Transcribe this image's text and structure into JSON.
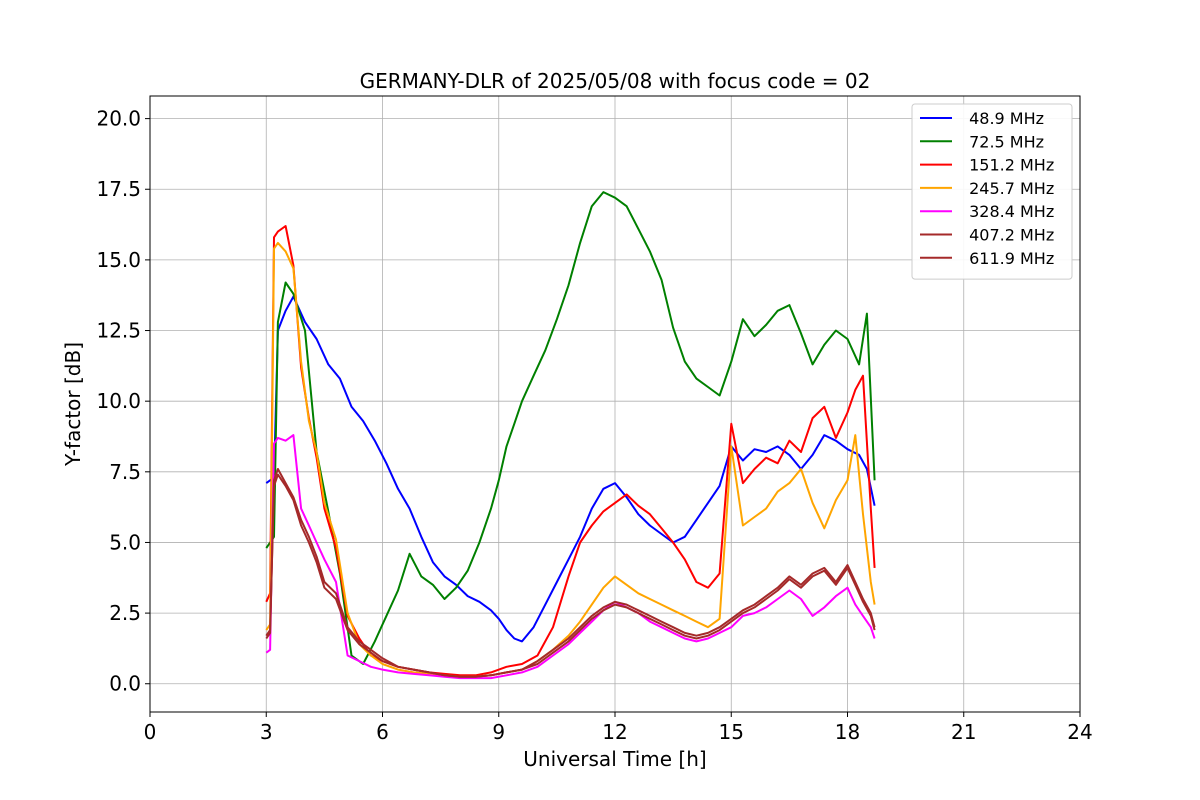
{
  "chart_data": {
    "type": "line",
    "title": "GERMANY-DLR of 2025/05/08 with focus code = 02",
    "xlabel": "Universal Time [h]",
    "ylabel": "Y-factor [dB]",
    "xlim": [
      0,
      24
    ],
    "ylim": [
      -1.0,
      20.8
    ],
    "xticks": [
      0,
      3,
      6,
      9,
      12,
      15,
      18,
      21,
      24
    ],
    "xtick_labels": [
      "0",
      "3",
      "6",
      "9",
      "12",
      "15",
      "18",
      "21",
      "24"
    ],
    "yticks": [
      0,
      2.5,
      5,
      7.5,
      10,
      12.5,
      15,
      17.5,
      20
    ],
    "ytick_labels": [
      "0.0",
      "2.5",
      "5.0",
      "7.5",
      "10.0",
      "12.5",
      "15.0",
      "17.5",
      "20.0"
    ],
    "grid": true,
    "legend_position": "top-right",
    "series": [
      {
        "name": " 48.9 MHz",
        "color": "#0000ff",
        "x": [
          3.0,
          3.2,
          3.3,
          3.5,
          3.7,
          4.0,
          4.3,
          4.6,
          4.9,
          5.2,
          5.5,
          5.8,
          6.1,
          6.4,
          6.7,
          7.0,
          7.3,
          7.6,
          7.9,
          8.2,
          8.5,
          8.8,
          9.0,
          9.2,
          9.4,
          9.6,
          9.9,
          10.2,
          10.5,
          10.8,
          11.1,
          11.4,
          11.7,
          12.0,
          12.3,
          12.6,
          12.9,
          13.2,
          13.5,
          13.8,
          14.1,
          14.4,
          14.7,
          15.0,
          15.3,
          15.6,
          15.9,
          16.2,
          16.5,
          16.8,
          17.1,
          17.4,
          17.7,
          18.0,
          18.3,
          18.5,
          18.7
        ],
        "y": [
          7.1,
          7.3,
          12.5,
          13.2,
          13.7,
          12.8,
          12.2,
          11.3,
          10.8,
          9.8,
          9.3,
          8.6,
          7.8,
          6.9,
          6.2,
          5.2,
          4.3,
          3.8,
          3.5,
          3.1,
          2.9,
          2.6,
          2.3,
          1.9,
          1.6,
          1.5,
          2.0,
          2.8,
          3.6,
          4.4,
          5.2,
          6.2,
          6.9,
          7.1,
          6.6,
          6.0,
          5.6,
          5.3,
          5.0,
          5.2,
          5.8,
          6.4,
          7.0,
          8.4,
          7.9,
          8.3,
          8.2,
          8.4,
          8.1,
          7.6,
          8.1,
          8.8,
          8.6,
          8.3,
          8.1,
          7.6,
          6.3
        ]
      },
      {
        "name": " 72.5 MHz",
        "color": "#008000",
        "x": [
          3.0,
          3.2,
          3.3,
          3.5,
          3.7,
          4.0,
          4.3,
          4.6,
          4.9,
          5.2,
          5.5,
          5.8,
          6.1,
          6.4,
          6.7,
          7.0,
          7.3,
          7.6,
          7.9,
          8.2,
          8.5,
          8.8,
          9.0,
          9.2,
          9.4,
          9.6,
          9.9,
          10.2,
          10.5,
          10.8,
          11.1,
          11.4,
          11.7,
          12.0,
          12.3,
          12.6,
          12.9,
          13.2,
          13.5,
          13.8,
          14.1,
          14.4,
          14.7,
          15.0,
          15.3,
          15.6,
          15.9,
          16.2,
          16.5,
          16.8,
          17.1,
          17.4,
          17.7,
          18.0,
          18.3,
          18.5,
          18.7
        ],
        "y": [
          4.8,
          5.2,
          12.8,
          14.2,
          13.8,
          12.5,
          8.2,
          6.1,
          3.9,
          1.0,
          0.7,
          1.5,
          2.4,
          3.3,
          4.6,
          3.8,
          3.5,
          3.0,
          3.4,
          4.0,
          5.0,
          6.2,
          7.2,
          8.4,
          9.2,
          10.0,
          10.9,
          11.8,
          12.9,
          14.1,
          15.6,
          16.9,
          17.4,
          17.2,
          16.9,
          16.1,
          15.3,
          14.3,
          12.6,
          11.4,
          10.8,
          10.5,
          10.2,
          11.4,
          12.9,
          12.3,
          12.7,
          13.2,
          13.4,
          12.4,
          11.3,
          12.0,
          12.5,
          12.2,
          11.3,
          13.1,
          7.2
        ]
      },
      {
        "name": " 151.2 MHz",
        "color": "#ff0000",
        "x": [
          3.0,
          3.1,
          3.2,
          3.3,
          3.5,
          3.7,
          3.9,
          4.1,
          4.3,
          4.5,
          4.8,
          5.1,
          5.4,
          5.7,
          6.0,
          6.4,
          6.8,
          7.2,
          7.6,
          8.0,
          8.4,
          8.8,
          9.2,
          9.6,
          10.0,
          10.4,
          10.8,
          11.1,
          11.4,
          11.7,
          12.0,
          12.3,
          12.6,
          12.9,
          13.2,
          13.5,
          13.8,
          14.1,
          14.4,
          14.7,
          15.0,
          15.3,
          15.6,
          15.9,
          16.2,
          16.5,
          16.8,
          17.1,
          17.4,
          17.7,
          18.0,
          18.2,
          18.4,
          18.6,
          18.7
        ],
        "y": [
          2.9,
          3.2,
          15.8,
          16.0,
          16.2,
          14.8,
          11.2,
          9.4,
          8.0,
          6.2,
          4.8,
          2.4,
          1.6,
          1.0,
          0.8,
          0.6,
          0.5,
          0.4,
          0.35,
          0.3,
          0.3,
          0.4,
          0.6,
          0.7,
          1.0,
          2.0,
          3.8,
          5.0,
          5.6,
          6.1,
          6.4,
          6.7,
          6.3,
          6.0,
          5.5,
          5.0,
          4.4,
          3.6,
          3.4,
          3.9,
          9.2,
          7.1,
          7.6,
          8.0,
          7.8,
          8.6,
          8.2,
          9.4,
          9.8,
          8.7,
          9.6,
          10.4,
          10.9,
          6.2,
          4.1
        ]
      },
      {
        "name": " 245.7 MHz",
        "color": "#ffa500",
        "x": [
          3.0,
          3.1,
          3.2,
          3.3,
          3.5,
          3.7,
          3.9,
          4.1,
          4.3,
          4.5,
          4.8,
          5.1,
          5.4,
          5.7,
          6.0,
          6.4,
          6.8,
          7.2,
          7.6,
          8.0,
          8.4,
          8.8,
          9.2,
          9.6,
          10.0,
          10.4,
          10.8,
          11.1,
          11.4,
          11.7,
          12.0,
          12.3,
          12.6,
          12.9,
          13.2,
          13.5,
          13.8,
          14.1,
          14.4,
          14.7,
          15.0,
          15.3,
          15.6,
          15.9,
          16.2,
          16.5,
          16.8,
          17.1,
          17.4,
          17.7,
          18.0,
          18.2,
          18.4,
          18.6,
          18.7
        ],
        "y": [
          1.9,
          2.1,
          15.4,
          15.6,
          15.3,
          14.7,
          11.4,
          9.3,
          8.2,
          6.4,
          5.1,
          2.5,
          1.4,
          1.0,
          0.7,
          0.5,
          0.4,
          0.35,
          0.3,
          0.25,
          0.25,
          0.3,
          0.4,
          0.5,
          0.8,
          1.2,
          1.7,
          2.2,
          2.8,
          3.4,
          3.8,
          3.5,
          3.2,
          3.0,
          2.8,
          2.6,
          2.4,
          2.2,
          2.0,
          2.3,
          8.4,
          5.6,
          5.9,
          6.2,
          6.8,
          7.1,
          7.6,
          6.4,
          5.5,
          6.5,
          7.2,
          8.8,
          6.0,
          3.6,
          2.8
        ]
      },
      {
        "name": " 328.4 MHz",
        "color": "#ff00ff",
        "x": [
          3.0,
          3.1,
          3.2,
          3.3,
          3.5,
          3.7,
          3.9,
          4.1,
          4.3,
          4.5,
          4.8,
          5.1,
          5.4,
          5.7,
          6.0,
          6.4,
          6.8,
          7.2,
          7.6,
          8.0,
          8.4,
          8.8,
          9.2,
          9.6,
          10.0,
          10.4,
          10.8,
          11.1,
          11.4,
          11.7,
          12.0,
          12.3,
          12.6,
          12.9,
          13.2,
          13.5,
          13.8,
          14.1,
          14.4,
          14.7,
          15.0,
          15.3,
          15.6,
          15.9,
          16.2,
          16.5,
          16.8,
          17.1,
          17.4,
          17.7,
          18.0,
          18.2,
          18.4,
          18.6,
          18.7
        ],
        "y": [
          1.1,
          1.2,
          8.5,
          8.7,
          8.6,
          8.8,
          6.2,
          5.6,
          5.0,
          4.4,
          3.6,
          1.0,
          0.8,
          0.6,
          0.5,
          0.4,
          0.35,
          0.3,
          0.25,
          0.2,
          0.2,
          0.2,
          0.3,
          0.4,
          0.6,
          1.0,
          1.4,
          1.8,
          2.2,
          2.6,
          2.9,
          2.7,
          2.5,
          2.2,
          2.0,
          1.8,
          1.6,
          1.5,
          1.6,
          1.8,
          2.0,
          2.4,
          2.5,
          2.7,
          3.0,
          3.3,
          3.0,
          2.4,
          2.7,
          3.1,
          3.4,
          2.8,
          2.4,
          2.0,
          1.6
        ]
      },
      {
        "name": " 407.2 MHz",
        "color": "#a52a2a",
        "x": [
          3.0,
          3.1,
          3.2,
          3.3,
          3.5,
          3.7,
          3.9,
          4.1,
          4.3,
          4.5,
          4.8,
          5.1,
          5.4,
          5.7,
          6.0,
          6.4,
          6.8,
          7.2,
          7.6,
          8.0,
          8.4,
          8.8,
          9.2,
          9.6,
          10.0,
          10.4,
          10.8,
          11.1,
          11.4,
          11.7,
          12.0,
          12.3,
          12.6,
          12.9,
          13.2,
          13.5,
          13.8,
          14.1,
          14.4,
          14.7,
          15.0,
          15.3,
          15.6,
          15.9,
          16.2,
          16.5,
          16.8,
          17.1,
          17.4,
          17.7,
          18.0,
          18.2,
          18.4,
          18.6,
          18.7
        ],
        "y": [
          1.6,
          1.8,
          7.2,
          7.6,
          7.1,
          6.6,
          5.8,
          5.2,
          4.5,
          3.6,
          3.2,
          2.0,
          1.5,
          1.2,
          0.9,
          0.6,
          0.5,
          0.4,
          0.3,
          0.25,
          0.25,
          0.3,
          0.4,
          0.5,
          0.8,
          1.2,
          1.6,
          2.0,
          2.4,
          2.7,
          2.9,
          2.8,
          2.6,
          2.4,
          2.2,
          2.0,
          1.8,
          1.7,
          1.8,
          2.0,
          2.3,
          2.6,
          2.8,
          3.1,
          3.4,
          3.8,
          3.5,
          3.9,
          4.1,
          3.6,
          4.2,
          3.6,
          3.0,
          2.5,
          2.0
        ]
      },
      {
        "name": " 611.9 MHz",
        "color": "#a52a2a",
        "x": [
          3.0,
          3.1,
          3.2,
          3.3,
          3.5,
          3.7,
          3.9,
          4.1,
          4.3,
          4.5,
          4.8,
          5.1,
          5.4,
          5.7,
          6.0,
          6.4,
          6.8,
          7.2,
          7.6,
          8.0,
          8.4,
          8.8,
          9.2,
          9.6,
          10.0,
          10.4,
          10.8,
          11.1,
          11.4,
          11.7,
          12.0,
          12.3,
          12.6,
          12.9,
          13.2,
          13.5,
          13.8,
          14.1,
          14.4,
          14.7,
          15.0,
          15.3,
          15.6,
          15.9,
          16.2,
          16.5,
          16.8,
          17.1,
          17.4,
          17.7,
          18.0,
          18.2,
          18.4,
          18.6,
          18.7
        ],
        "y": [
          1.7,
          1.9,
          7.0,
          7.4,
          7.0,
          6.5,
          5.6,
          5.0,
          4.3,
          3.4,
          3.0,
          1.9,
          1.4,
          1.1,
          0.8,
          0.6,
          0.5,
          0.4,
          0.3,
          0.25,
          0.25,
          0.3,
          0.4,
          0.5,
          0.7,
          1.1,
          1.5,
          1.9,
          2.3,
          2.6,
          2.8,
          2.7,
          2.5,
          2.3,
          2.1,
          1.9,
          1.7,
          1.6,
          1.7,
          1.9,
          2.2,
          2.5,
          2.7,
          3.0,
          3.3,
          3.7,
          3.4,
          3.8,
          4.0,
          3.5,
          4.1,
          3.5,
          2.9,
          2.4,
          1.9
        ]
      }
    ]
  }
}
